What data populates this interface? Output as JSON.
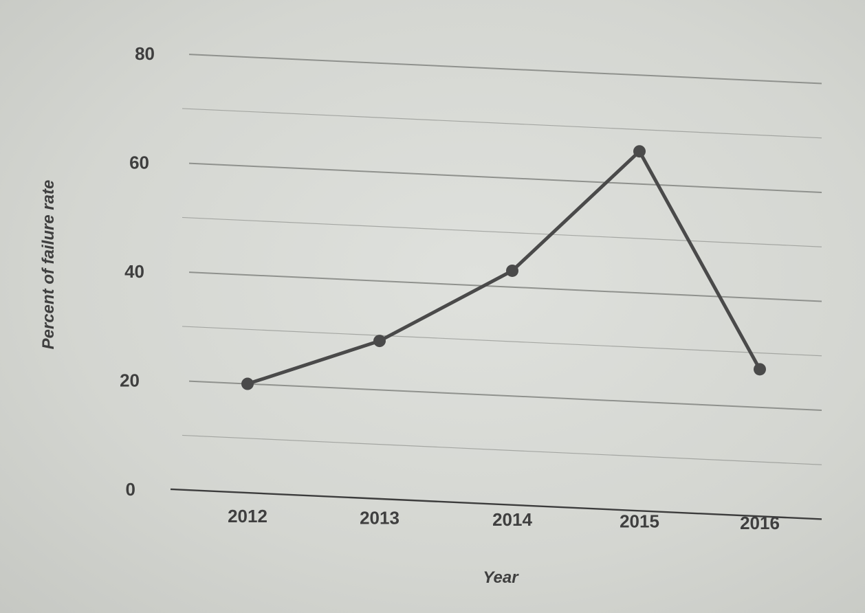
{
  "chart_data": {
    "type": "line",
    "categories": [
      "2012",
      "2013",
      "2014",
      "2015",
      "2016"
    ],
    "series": [
      {
        "values": [
          20,
          29,
          43,
          66,
          27
        ]
      }
    ],
    "xlabel": "Year",
    "ylabel": "Percent of failure rate",
    "ylim": [
      0,
      80
    ],
    "yticks": [
      0,
      20,
      40,
      60,
      80
    ],
    "minor_grid": [
      10,
      30,
      50,
      70
    ],
    "grid": true,
    "colors": {
      "line": "#4a4a4a",
      "grid": "#8f918d",
      "axis": "#3c3c3c",
      "text": "#3f3f3f"
    }
  }
}
